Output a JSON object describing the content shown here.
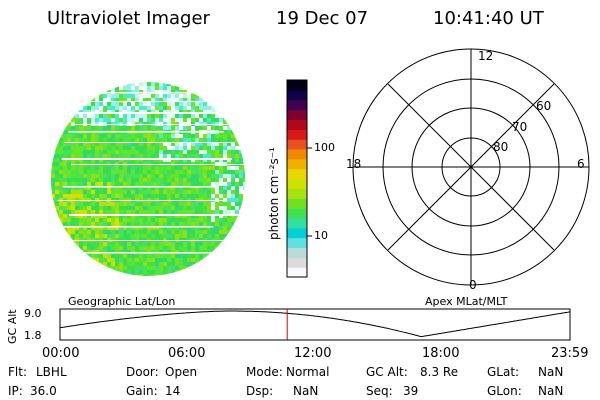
{
  "header": {
    "title": "Ultraviolet Imager",
    "date": "19 Dec 07",
    "time": "10:41:40 UT"
  },
  "colorbar": {
    "unit_label": "photon cm⁻²s⁻¹",
    "ticks": [
      "100",
      "10"
    ],
    "colors": [
      "#f8f8f8",
      "#dcdcdc",
      "#b8dcdc",
      "#60e0e0",
      "#00d0d8",
      "#30e0a0",
      "#40e050",
      "#70e020",
      "#a8e010",
      "#d0e000",
      "#e8d800",
      "#f0b000",
      "#f08800",
      "#e85020",
      "#d81818",
      "#b00818",
      "#800030",
      "#400050",
      "#100048",
      "#000018"
    ]
  },
  "image_labels": {
    "left": "Geographic Lat/Lon",
    "right": "Apex MLat/MLT"
  },
  "polar_plot": {
    "hour_labels": [
      "12",
      "18",
      "6",
      "0"
    ],
    "lat_labels": [
      "60",
      "70",
      "80"
    ]
  },
  "altitude_plot": {
    "ylabel": "GC Alt",
    "yticks": [
      "9.0",
      "1.8"
    ],
    "xticks": [
      "00:00",
      "06:00",
      "12:00",
      "18:00",
      "23:59"
    ],
    "current_time_hours": 10.694,
    "marker_color": "#e00000"
  },
  "footer": {
    "flt_label": "Flt:",
    "flt_value": "LBHL",
    "ip_label": "IP:",
    "ip_value": "36.0",
    "door_label": "Door:",
    "door_value": "Open",
    "gain_label": "Gain:",
    "gain_value": "14",
    "mode_label": "Mode:",
    "mode_value": "Normal",
    "dsp_label": "Dsp:",
    "dsp_value": "NaN",
    "gcalt_label": "GC Alt:",
    "gcalt_value": "8.3 Re",
    "seq_label": "Seq:",
    "seq_value": "39",
    "glat_label": "GLat:",
    "glat_value": "NaN",
    "glon_label": "GLon:",
    "glon_value": "NaN"
  }
}
